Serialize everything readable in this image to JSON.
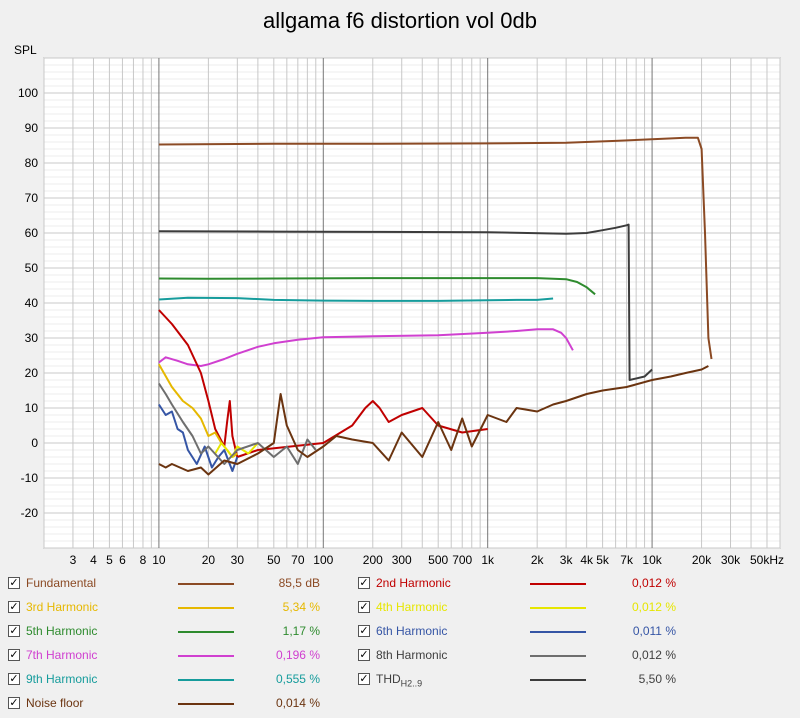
{
  "title": "allgama f6 distortion vol 0db",
  "colors": {
    "fundamental": "#8b4a24",
    "h2": "#c00000",
    "h3": "#e6b800",
    "h4": "#e6e600",
    "h5": "#2e8b2e",
    "h6": "#3555a5",
    "h7": "#d040d0",
    "h8": "#6e6e6e",
    "h9": "#169c9c",
    "thd": "#3c3c3c",
    "noise": "#6b3410"
  },
  "legend": [
    {
      "key": "fundamental",
      "label": "Fundamental",
      "value": "85,5 dB",
      "checked": "✓"
    },
    {
      "key": "h2",
      "label": "2nd Harmonic",
      "value": "0,012 %",
      "checked": "✓"
    },
    {
      "key": "h3",
      "label": "3rd Harmonic",
      "value": "5,34 %",
      "checked": "✓"
    },
    {
      "key": "h4",
      "label": "4th Harmonic",
      "value": "0,012 %",
      "checked": "✓"
    },
    {
      "key": "h5",
      "label": "5th Harmonic",
      "value": "1,17 %",
      "checked": "✓"
    },
    {
      "key": "h6",
      "label": "6th Harmonic",
      "value": "0,011 %",
      "checked": "✓"
    },
    {
      "key": "h7",
      "label": "7th Harmonic",
      "value": "0,196 %",
      "checked": "✓"
    },
    {
      "key": "h8",
      "label": "8th Harmonic",
      "value": "0,012 %",
      "checked": "✓"
    },
    {
      "key": "h9",
      "label": "9th Harmonic",
      "value": "0,555 %",
      "checked": "✓"
    },
    {
      "key": "thd",
      "label": "THD",
      "label_sub": "H2..9",
      "value": "5,50 %",
      "checked": "✓"
    },
    {
      "key": "noise",
      "label": "Noise floor",
      "value": "0,014 %",
      "checked": "✓"
    }
  ],
  "chart_data": {
    "type": "line",
    "title": "allgama f6 distortion vol 0db",
    "ylabel": "SPL",
    "xunit_label": "50kHz",
    "xscale": "log",
    "xlim": [
      2,
      60000
    ],
    "ylim": [
      -30,
      110
    ],
    "grid": true,
    "y_ticks": [
      "100",
      "90",
      "80",
      "70",
      "60",
      "50",
      "40",
      "30",
      "20",
      "10",
      "0",
      "-10",
      "-20"
    ],
    "x_ticks": [
      {
        "v": 3,
        "t": "3"
      },
      {
        "v": 4,
        "t": "4"
      },
      {
        "v": 5,
        "t": "5"
      },
      {
        "v": 6,
        "t": "6"
      },
      {
        "v": 8,
        "t": "8"
      },
      {
        "v": 10,
        "t": "10"
      },
      {
        "v": 20,
        "t": "20"
      },
      {
        "v": 30,
        "t": "30"
      },
      {
        "v": 50,
        "t": "50"
      },
      {
        "v": 70,
        "t": "70"
      },
      {
        "v": 100,
        "t": "100"
      },
      {
        "v": 200,
        "t": "200"
      },
      {
        "v": 300,
        "t": "300"
      },
      {
        "v": 500,
        "t": "500"
      },
      {
        "v": 700,
        "t": "700"
      },
      {
        "v": 1000,
        "t": "1k"
      },
      {
        "v": 2000,
        "t": "2k"
      },
      {
        "v": 3000,
        "t": "3k"
      },
      {
        "v": 4000,
        "t": "4k"
      },
      {
        "v": 5000,
        "t": "5k"
      },
      {
        "v": 7000,
        "t": "7k"
      },
      {
        "v": 10000,
        "t": "10k"
      },
      {
        "v": 20000,
        "t": "20k"
      },
      {
        "v": 30000,
        "t": "30k"
      },
      {
        "v": 50000,
        "t": "50kHz"
      }
    ],
    "series": [
      {
        "name": "Fundamental",
        "color_key": "fundamental",
        "x": [
          10,
          50,
          200,
          1000,
          3000,
          6000,
          10000,
          16000,
          19000,
          20000,
          21000,
          22000,
          23000
        ],
        "y": [
          85.3,
          85.5,
          85.5,
          85.6,
          85.8,
          86.3,
          86.8,
          87.2,
          87.2,
          84,
          60,
          30,
          24
        ]
      },
      {
        "name": "THD H2..9",
        "color_key": "thd",
        "x": [
          10,
          50,
          200,
          1000,
          3000,
          4000,
          5000,
          6000,
          7000,
          7200,
          7300,
          9000,
          10000
        ],
        "y": [
          60.5,
          60.4,
          60.3,
          60.2,
          59.8,
          60.0,
          60.8,
          61.5,
          62.2,
          62.4,
          18,
          19,
          21
        ]
      },
      {
        "name": "5th Harmonic",
        "color_key": "h5",
        "x": [
          10,
          20,
          50,
          200,
          1000,
          2000,
          3000,
          3500,
          4000,
          4500
        ],
        "y": [
          47.0,
          46.9,
          47.0,
          47.1,
          47.1,
          47.1,
          46.8,
          46.0,
          44.5,
          42.5
        ]
      },
      {
        "name": "9th Harmonic",
        "color_key": "h9",
        "x": [
          10,
          15,
          30,
          50,
          100,
          200,
          500,
          1000,
          1500,
          2000,
          2500
        ],
        "y": [
          41.0,
          41.5,
          41.4,
          40.9,
          40.7,
          40.6,
          40.6,
          40.8,
          40.9,
          40.9,
          41.3
        ]
      },
      {
        "name": "7th Harmonic",
        "color_key": "h7",
        "x": [
          10,
          11,
          13,
          15,
          18,
          20,
          25,
          30,
          40,
          50,
          70,
          100,
          200,
          500,
          1000,
          1500,
          2000,
          2500,
          2800,
          3000,
          3300
        ],
        "y": [
          23,
          24.5,
          23.5,
          22.5,
          22.0,
          22.5,
          24,
          25.5,
          27.5,
          28.5,
          29.5,
          30.2,
          30.5,
          30.8,
          31.5,
          32.0,
          32.5,
          32.5,
          31.5,
          30,
          26.5
        ]
      },
      {
        "name": "2nd Harmonic",
        "color_key": "h2",
        "x": [
          10,
          12,
          15,
          18,
          20,
          22,
          25,
          26,
          27,
          28,
          30,
          40,
          100,
          150,
          180,
          200,
          220,
          250,
          300,
          400,
          500,
          700,
          1000
        ],
        "y": [
          38,
          34,
          28,
          20,
          12,
          4,
          -1,
          6,
          12,
          2,
          -4,
          -2,
          0,
          5,
          10,
          12,
          10,
          6,
          8,
          10,
          5,
          3,
          4
        ]
      },
      {
        "name": "3rd Harmonic",
        "color_key": "h3",
        "x": [
          10,
          12,
          14,
          16,
          18,
          20,
          22,
          24,
          26,
          28,
          30
        ],
        "y": [
          22.5,
          16,
          12,
          10,
          7,
          2,
          3,
          0,
          -2,
          -4,
          -3
        ]
      },
      {
        "name": "4th Harmonic",
        "color_key": "h4",
        "x": [
          22,
          24,
          26,
          28,
          30,
          35,
          40
        ],
        "y": [
          -3,
          0,
          -2,
          -4,
          -1,
          -3,
          0
        ]
      },
      {
        "name": "6th Harmonic",
        "color_key": "h6",
        "x": [
          10,
          11,
          12,
          13,
          14,
          15,
          17,
          19,
          21,
          23,
          25,
          28,
          30
        ],
        "y": [
          11,
          8,
          9,
          4,
          3,
          -2,
          -6,
          -1,
          -7,
          -4,
          -2,
          -8,
          -4
        ]
      },
      {
        "name": "8th Harmonic",
        "color_key": "h8",
        "x": [
          10,
          11,
          12,
          14,
          16,
          18,
          20,
          25,
          30,
          40,
          50,
          60,
          70,
          80,
          90
        ],
        "y": [
          17,
          14,
          11,
          6,
          2,
          -3,
          -1,
          -6,
          -2,
          0,
          -4,
          -1,
          -6,
          1,
          -2
        ]
      },
      {
        "name": "Noise floor",
        "color_key": "noise",
        "x": [
          10,
          11,
          12,
          15,
          18,
          20,
          25,
          30,
          40,
          50,
          55,
          60,
          70,
          80,
          100,
          120,
          150,
          200,
          250,
          300,
          400,
          500,
          600,
          700,
          800,
          1000,
          1300,
          1500,
          2000,
          2500,
          3000,
          4000,
          5000,
          7000,
          10000,
          13000,
          16000,
          20000,
          22000
        ],
        "y": [
          -6,
          -7,
          -6,
          -8,
          -7,
          -9,
          -5,
          -6,
          -3,
          0,
          14,
          5,
          -2,
          -4,
          -1,
          2,
          1,
          0,
          -5,
          3,
          -4,
          6,
          -2,
          7,
          -1,
          8,
          6,
          10,
          9,
          11,
          12,
          14,
          15,
          16,
          18,
          19,
          20,
          21,
          22
        ]
      }
    ]
  }
}
